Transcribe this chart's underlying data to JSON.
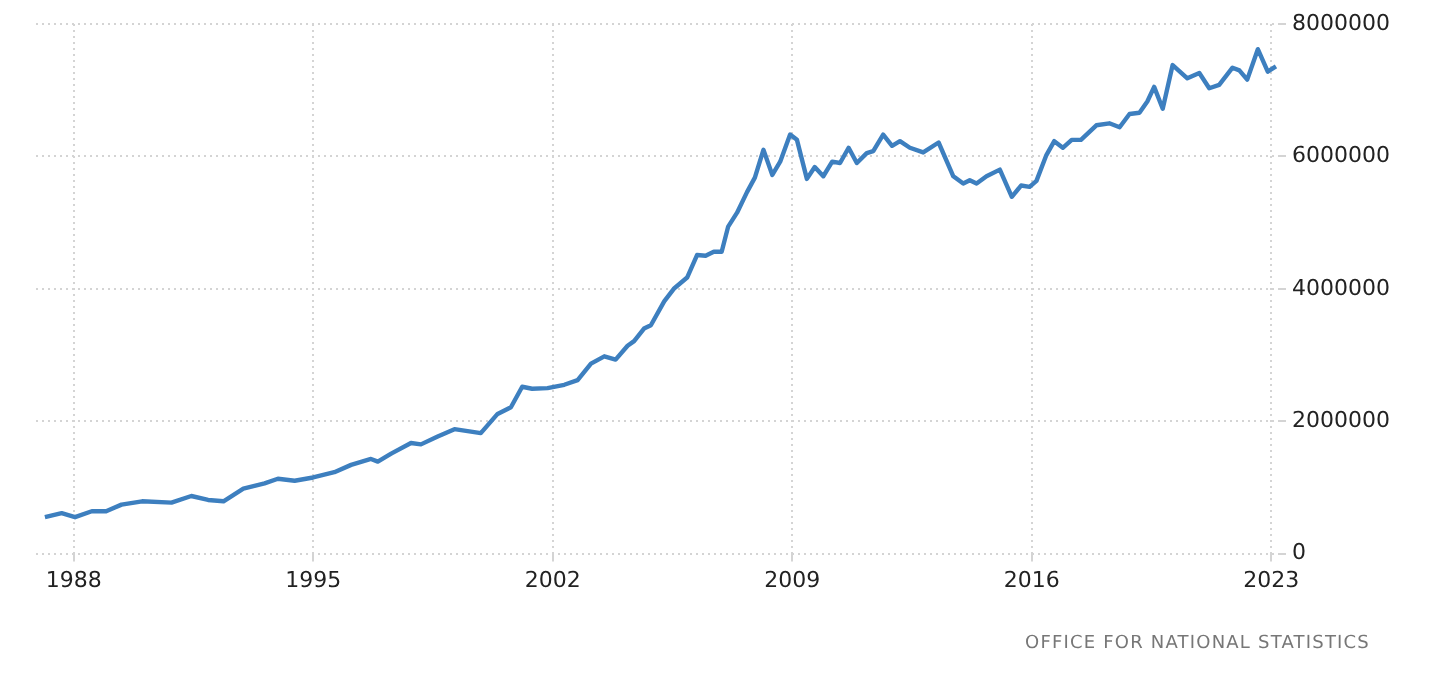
{
  "chart_data": {
    "type": "line",
    "x": [
      1987.16,
      1987.65,
      1988.04,
      1988.53,
      1988.95,
      1989.4,
      1990.0,
      1990.86,
      1991.44,
      1991.93,
      1992.38,
      1992.96,
      1993.58,
      1993.97,
      1994.46,
      1995.0,
      1995.62,
      1996.11,
      1996.69,
      1996.89,
      1997.28,
      1997.86,
      1998.15,
      1998.64,
      1999.13,
      1999.9,
      2000.39,
      2000.78,
      2001.11,
      2001.4,
      2001.85,
      2002.34,
      2002.73,
      2003.12,
      2003.51,
      2003.84,
      2004.19,
      2004.38,
      2004.67,
      2004.87,
      2005.26,
      2005.54,
      2005.93,
      2006.22,
      2006.47,
      2006.71,
      2006.94,
      2007.13,
      2007.39,
      2007.68,
      2007.91,
      2008.16,
      2008.42,
      2008.65,
      2008.94,
      2009.14,
      2009.43,
      2009.66,
      2009.91,
      2010.17,
      2010.4,
      2010.65,
      2010.89,
      2011.18,
      2011.37,
      2011.66,
      2011.92,
      2012.15,
      2012.44,
      2012.83,
      2013.28,
      2013.71,
      2014.0,
      2014.19,
      2014.39,
      2014.68,
      2015.07,
      2015.42,
      2015.69,
      2015.94,
      2016.14,
      2016.43,
      2016.66,
      2016.91,
      2017.17,
      2017.44,
      2017.89,
      2018.27,
      2018.57,
      2018.86,
      2019.15,
      2019.38,
      2019.58,
      2019.83,
      2020.12,
      2020.55,
      2020.9,
      2021.19,
      2021.48,
      2021.87,
      2022.07,
      2022.3,
      2022.61,
      2022.9,
      2023.14
    ],
    "series": [
      {
        "color": "#3d7fbf",
        "values": [
          550000,
          610000,
          550000,
          640000,
          640000,
          740000,
          790000,
          770000,
          870000,
          810000,
          790000,
          980000,
          1060000,
          1130000,
          1100000,
          1150000,
          1230000,
          1340000,
          1430000,
          1390000,
          1510000,
          1670000,
          1650000,
          1770000,
          1880000,
          1820000,
          2110000,
          2210000,
          2520000,
          2490000,
          2500000,
          2550000,
          2620000,
          2870000,
          2980000,
          2930000,
          3140000,
          3210000,
          3400000,
          3450000,
          3810000,
          4000000,
          4170000,
          4510000,
          4500000,
          4560000,
          4560000,
          4940000,
          5150000,
          5460000,
          5680000,
          6100000,
          5720000,
          5920000,
          6330000,
          6250000,
          5660000,
          5840000,
          5700000,
          5920000,
          5900000,
          6130000,
          5900000,
          6050000,
          6080000,
          6330000,
          6160000,
          6230000,
          6130000,
          6060000,
          6210000,
          5700000,
          5590000,
          5640000,
          5590000,
          5700000,
          5800000,
          5390000,
          5560000,
          5540000,
          5630000,
          6020000,
          6230000,
          6130000,
          6250000,
          6250000,
          6470000,
          6500000,
          6440000,
          6640000,
          6660000,
          6830000,
          7050000,
          6720000,
          7380000,
          7180000,
          7260000,
          7030000,
          7080000,
          7340000,
          7300000,
          7160000,
          7620000,
          7280000,
          7360000
        ]
      }
    ],
    "xlim": [
      1986.9,
      2023.2
    ],
    "xticks": [
      1988,
      1995,
      2002,
      2009,
      2016,
      2023
    ],
    "ylim": [
      0,
      8000000
    ],
    "yticks": [
      0,
      2000000,
      4000000,
      6000000,
      8000000
    ],
    "grid": true,
    "legend": false,
    "marker": "none",
    "line_style": "solid",
    "annotations": [
      "OFFICE FOR NATIONAL STATISTICS"
    ]
  }
}
